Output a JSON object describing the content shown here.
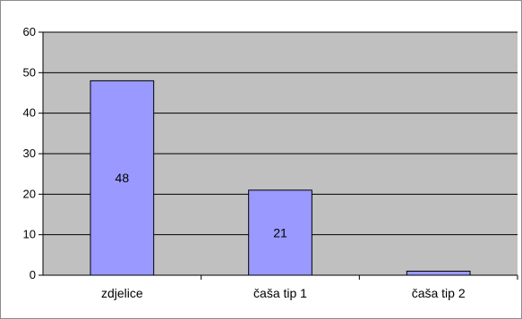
{
  "colors": {
    "plot_background": "#c0c0c0",
    "bar_fill": "#9999ff",
    "bar_stroke": "#000000",
    "gridline": "#000000"
  },
  "chart_data": {
    "type": "bar",
    "categories": [
      "zdjelice",
      "čaša tip 1",
      "čaša tip 2"
    ],
    "values": [
      48,
      21,
      1
    ],
    "data_labels": [
      "48",
      "21",
      ""
    ],
    "ylim": [
      0,
      60
    ],
    "yticks": [
      0,
      10,
      20,
      30,
      40,
      50,
      60
    ],
    "grid": true,
    "legend": "none"
  }
}
